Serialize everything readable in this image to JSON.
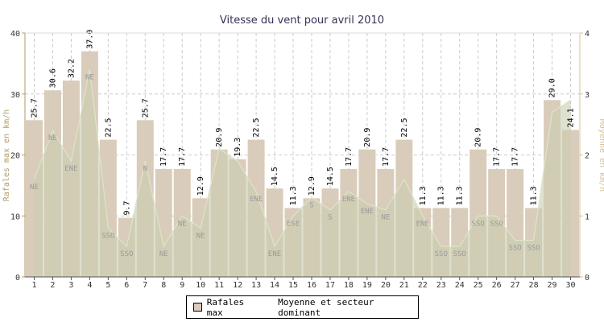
{
  "chart_data": {
    "type": "bar",
    "title": "Vitesse du vent pour avril 2010",
    "ylabel_left": "Rafales max en km/h",
    "ylabel_right": "Moyenne en km/h",
    "ylim_left": [
      0,
      40
    ],
    "ylim_right": [
      0,
      4
    ],
    "yticks_left": [
      "0",
      "10",
      "20",
      "30",
      "40"
    ],
    "yticks_right": [
      "0",
      "1",
      "2",
      "3",
      "4"
    ],
    "grid": true,
    "legend_position": "bottom",
    "categories": [
      "1",
      "2",
      "3",
      "4",
      "5",
      "6",
      "7",
      "8",
      "9",
      "10",
      "11",
      "12",
      "13",
      "14",
      "15",
      "16",
      "17",
      "18",
      "19",
      "20",
      "21",
      "22",
      "23",
      "24",
      "25",
      "26",
      "27",
      "28",
      "29",
      "30"
    ],
    "series": [
      {
        "name": "Rafales max",
        "axis": "left",
        "values": [
          25.7,
          30.6,
          32.2,
          37.0,
          22.5,
          9.7,
          25.7,
          17.7,
          17.7,
          12.9,
          20.9,
          19.3,
          22.5,
          14.5,
          11.3,
          12.9,
          14.5,
          17.7,
          20.9,
          17.7,
          22.5,
          11.3,
          11.3,
          11.3,
          20.9,
          17.7,
          17.7,
          11.3,
          29.0,
          24.1
        ],
        "labels": [
          "25.7",
          "30.6",
          "32.2",
          "37.0",
          "22.5",
          "9.7",
          "25.7",
          "17.7",
          "17.7",
          "12.9",
          "20.9",
          "19.3",
          "22.5",
          "14.5",
          "11.3",
          "12.9",
          "14.5",
          "17.7",
          "20.9",
          "17.7",
          "22.5",
          "11.3",
          "11.3",
          "11.3",
          "20.9",
          "17.7",
          "17.7",
          "11.3",
          "29.0",
          "24.1"
        ]
      },
      {
        "name": "Moyenne et secteur dominant",
        "axis": "right",
        "values": [
          1.6,
          2.4,
          1.9,
          3.4,
          0.8,
          0.5,
          1.9,
          0.5,
          1.0,
          0.8,
          2.1,
          1.9,
          1.4,
          0.5,
          1.0,
          1.3,
          1.1,
          1.4,
          1.2,
          1.1,
          1.6,
          1.0,
          0.5,
          0.5,
          1.0,
          1.0,
          0.6,
          0.6,
          2.7,
          2.9
        ],
        "sectors": [
          "NE",
          "NE",
          "ENE",
          "NE",
          "SSO",
          "SSO",
          "N",
          "NE",
          "NE",
          "NE",
          "",
          "",
          "ENE",
          "ENE",
          "ESE",
          "S",
          "S",
          "ENE",
          "ENE",
          "NE",
          "",
          "ENE",
          "SSO",
          "SSO",
          "SSO",
          "SSO",
          "SSO",
          "SSO",
          "",
          ""
        ]
      }
    ]
  },
  "legend": {
    "gust_label": "Rafales max",
    "mean_label": "Moyenne et secteur dominant"
  },
  "colors": {
    "bar_fill": "#d9ccba",
    "mean_fill": "#c9cdb0",
    "mean_line": "#dde5c8",
    "title": "#333355",
    "left_axis_label": "#b39a63",
    "right_axis_label": "#d4c29a",
    "grid": "#cccccc",
    "bar_label": "#000000",
    "sector_text": "#9a9a9a"
  }
}
